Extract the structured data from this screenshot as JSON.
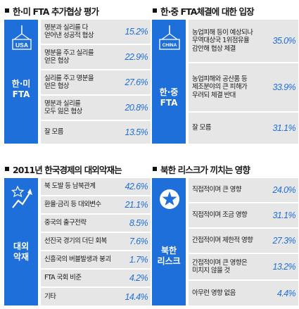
{
  "colors": {
    "accent": "#1e6fd9",
    "row_bg": "#e6e6e6"
  },
  "panels": [
    {
      "title": "한·미 FTA 추가협상 평가",
      "side_label": [
        "한·미",
        "FTA"
      ],
      "icon": "usa-flag-icon",
      "icon_text": "USA",
      "rows": [
        {
          "label": [
            "명분과 실리를 다",
            "얻어낸 성공적 협상"
          ],
          "value": "15.2%"
        },
        {
          "label": [
            "명분을 주고 실리를",
            "얻은 협상"
          ],
          "value": "22.9%"
        },
        {
          "label": [
            "실리를 주고 명분을",
            "얻은 협상"
          ],
          "value": "27.6%"
        },
        {
          "label": [
            "명분과 실리를",
            "모두 잃은 협상"
          ],
          "value": "20.8%"
        },
        {
          "label": [
            "잘 모름"
          ],
          "value": "13.5%"
        }
      ]
    },
    {
      "title": "한·중 FTA체결에 대한 입장",
      "side_label": [
        "한·중",
        "FTA"
      ],
      "icon": "china-flag-icon",
      "icon_text": "CHINA",
      "rows": [
        {
          "label": [
            "농업피해 등이 예상되나",
            "무역대상국 1위점유율",
            "감안해 협상 체결"
          ],
          "value": "35.0%"
        },
        {
          "label": [
            "농업피해와 공산품 등",
            "제조분야의 큰 피해가",
            "우려되 체결 반대"
          ],
          "value": "33.9%"
        },
        {
          "label": [
            "잘 모름"
          ],
          "value": "31.1%"
        }
      ]
    },
    {
      "title": "2011년 한국경제의 대외악재는",
      "side_label": [
        "대외",
        "악재"
      ],
      "icon": "chart-arrow-icon",
      "rows": [
        {
          "label": [
            "북 도발 등 남북관계"
          ],
          "value": "42.6%"
        },
        {
          "label": [
            "환율·금리 등 대외변수"
          ],
          "value": "21.1%"
        },
        {
          "label": [
            "중국의 출구전략"
          ],
          "value": "8.5%"
        },
        {
          "label": [
            "선진국 경기의 더딘 회복"
          ],
          "value": "7.6%"
        },
        {
          "label": [
            "신흥국의 버블발생과 붕괴"
          ],
          "value": "1.7%"
        },
        {
          "label": [
            "FTA 국회 비준"
          ],
          "value": "4.2%"
        },
        {
          "label": [
            "기타"
          ],
          "value": "14.4%"
        }
      ]
    },
    {
      "title": "북한 리스크가 끼치는 영향",
      "side_label": [
        "북한",
        "리스크"
      ],
      "icon": "star-emblem-icon",
      "rows": [
        {
          "label": [
            "직접적이며 큰 영향"
          ],
          "value": "24.0%"
        },
        {
          "label": [
            "직접적이며 조금 영향"
          ],
          "value": "31.1%"
        },
        {
          "label": [
            "간접적이며 제한적 영향"
          ],
          "value": "27.3%"
        },
        {
          "label": [
            "간접적이며 큰 영향은",
            "미치지 않을 것"
          ],
          "value": "13.2%"
        },
        {
          "label": [
            "아무런 영향 없음"
          ],
          "value": "4.4%"
        }
      ]
    }
  ],
  "chart_data": [
    {
      "type": "table",
      "title": "한·미 FTA 추가협상 평가",
      "categories": [
        "명분과 실리를 다 얻어낸 성공적 협상",
        "명분을 주고 실리를 얻은 협상",
        "실리를 주고 명분을 얻은 협상",
        "명분과 실리를 모두 잃은 협상",
        "잘 모름"
      ],
      "values": [
        15.2,
        22.9,
        27.6,
        20.8,
        13.5
      ]
    },
    {
      "type": "table",
      "title": "한·중 FTA체결에 대한 입장",
      "categories": [
        "농업피해 등이 예상되나 무역대상국 1위점유율 감안해 협상 체결",
        "농업피해와 공산품 등 제조분야의 큰 피해가 우려되 체결 반대",
        "잘 모름"
      ],
      "values": [
        35.0,
        33.9,
        31.1
      ]
    },
    {
      "type": "table",
      "title": "2011년 한국경제의 대외악재는",
      "categories": [
        "북 도발 등 남북관계",
        "환율·금리 등 대외변수",
        "중국의 출구전략",
        "선진국 경기의 더딘 회복",
        "신흥국의 버블발생과 붕괴",
        "FTA 국회 비준",
        "기타"
      ],
      "values": [
        42.6,
        21.1,
        8.5,
        7.6,
        1.7,
        4.2,
        14.4
      ]
    },
    {
      "type": "table",
      "title": "북한 리스크가 끼치는 영향",
      "categories": [
        "직접적이며 큰 영향",
        "직접적이며 조금 영향",
        "간접적이며 제한적 영향",
        "간접적이며 큰 영향은 미치지 않을 것",
        "아무런 영향 없음"
      ],
      "values": [
        24.0,
        31.1,
        27.3,
        13.2,
        4.4
      ]
    }
  ]
}
